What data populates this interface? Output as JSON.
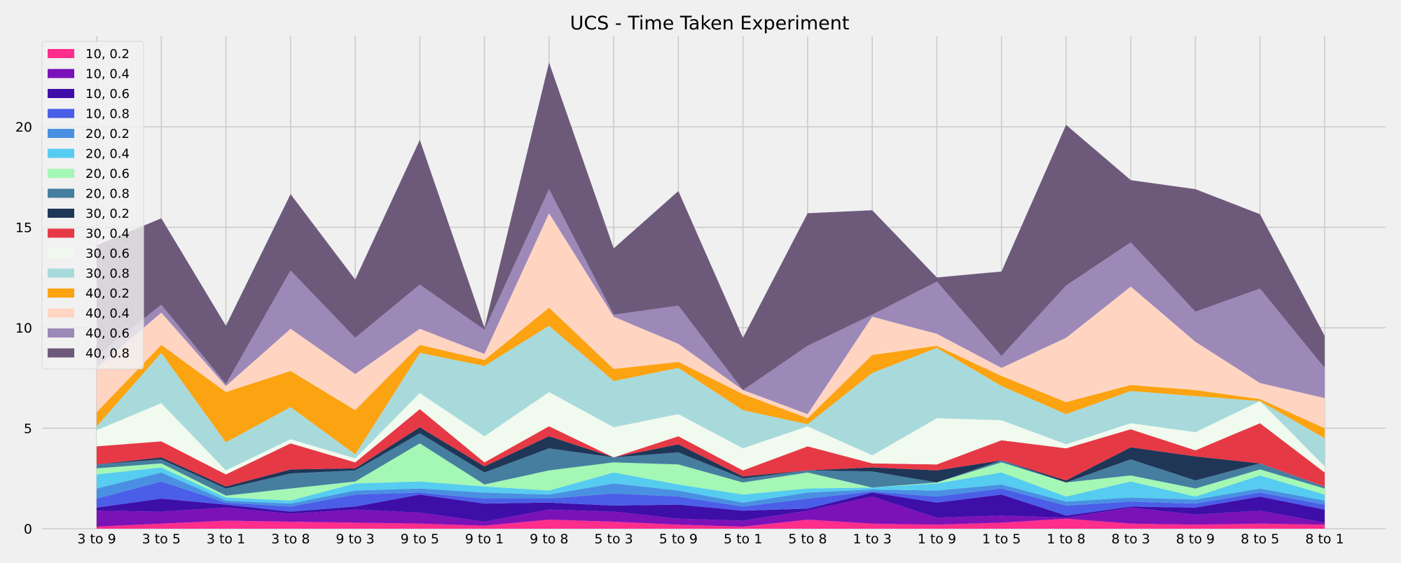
{
  "chart_data": {
    "type": "area",
    "stacked": true,
    "title": "UCS - Time Taken Experiment",
    "xlabel": "",
    "ylabel": "",
    "ylim": [
      0,
      24.5
    ],
    "yticks": [
      0,
      5,
      10,
      15,
      20
    ],
    "grid": true,
    "legend_position": "top-left",
    "categories": [
      "3 to 9",
      "3 to 5",
      "3 to 1",
      "3 to 8",
      "9 to 3",
      "9 to 5",
      "9 to 1",
      "9 to 8",
      "5 to 3",
      "5 to 9",
      "5 to 1",
      "5 to 8",
      "1 to 3",
      "1 to 9",
      "1 to 5",
      "1 to 8",
      "8 to 3",
      "8 to 9",
      "8 to 5",
      "8 to 1"
    ],
    "series": [
      {
        "name": "10, 0.2",
        "color": "#ff2d8c",
        "values": [
          0.1,
          0.25,
          0.4,
          0.35,
          0.3,
          0.25,
          0.15,
          0.45,
          0.35,
          0.2,
          0.1,
          0.45,
          0.25,
          0.2,
          0.3,
          0.5,
          0.25,
          0.2,
          0.25,
          0.2
        ]
      },
      {
        "name": "10, 0.4",
        "color": "#7a12b8",
        "values": [
          0.8,
          0.6,
          0.65,
          0.4,
          0.65,
          0.55,
          0.2,
          0.5,
          0.5,
          0.3,
          0.3,
          0.45,
          1.35,
          0.35,
          0.35,
          0.05,
          0.8,
          0.5,
          0.65,
          0.1
        ]
      },
      {
        "name": "10, 0.6",
        "color": "#3e0ea8",
        "values": [
          0.15,
          0.65,
          0.15,
          0.1,
          0.15,
          0.9,
          0.9,
          0.35,
          0.3,
          0.7,
          0.5,
          0.1,
          0.2,
          0.75,
          1.05,
          0.1,
          0.05,
          0.35,
          0.7,
          0.65
        ]
      },
      {
        "name": "10, 0.8",
        "color": "#4b5ee8",
        "values": [
          0.45,
          0.85,
          0.1,
          0.25,
          0.6,
          0.1,
          0.25,
          0.2,
          0.6,
          0.4,
          0.2,
          0.5,
          0.05,
          0.3,
          0.3,
          0.5,
          0.25,
          0.2,
          0.2,
          0.25
        ]
      },
      {
        "name": "20, 0.2",
        "color": "#4a90e2",
        "values": [
          0.5,
          0.45,
          0.1,
          0.15,
          0.2,
          0.2,
          0.3,
          0.2,
          0.5,
          0.3,
          0.2,
          0.3,
          0.1,
          0.3,
          0.2,
          0.2,
          0.2,
          0.2,
          0.2,
          0.2
        ]
      },
      {
        "name": "20, 0.4",
        "color": "#56ccf0",
        "values": [
          0.7,
          0.25,
          0.15,
          0.15,
          0.35,
          0.35,
          0.3,
          0.2,
          0.55,
          0.3,
          0.4,
          0.2,
          0.1,
          0.35,
          0.6,
          0.25,
          0.8,
          0.15,
          0.65,
          0.3
        ]
      },
      {
        "name": "20, 0.6",
        "color": "#a4f7b4",
        "values": [
          0.3,
          0.2,
          0.1,
          0.6,
          0.1,
          1.9,
          0.1,
          1.0,
          0.5,
          1.0,
          0.6,
          0.8,
          0.0,
          0.05,
          0.5,
          0.7,
          0.3,
          0.4,
          0.3,
          0.3
        ]
      },
      {
        "name": "20, 0.8",
        "color": "#467ea0",
        "values": [
          0.2,
          0.2,
          0.35,
          0.75,
          0.55,
          0.5,
          0.6,
          1.1,
          0.25,
          0.6,
          0.2,
          0.1,
          0.8,
          0.0,
          0.1,
          0.0,
          0.8,
          0.4,
          0.3,
          0.1
        ]
      },
      {
        "name": "30, 0.2",
        "color": "#1f3657",
        "values": [
          0.0,
          0.1,
          0.1,
          0.2,
          0.1,
          0.3,
          0.3,
          0.6,
          0.0,
          0.4,
          0.1,
          0.0,
          0.2,
          0.6,
          0.0,
          0.1,
          0.6,
          1.2,
          0.0,
          0.0
        ]
      },
      {
        "name": "30, 0.4",
        "color": "#e63946",
        "values": [
          0.9,
          0.8,
          0.6,
          1.3,
          0.3,
          0.9,
          0.2,
          0.5,
          0.0,
          0.4,
          0.3,
          1.2,
          0.2,
          0.3,
          1.0,
          1.6,
          0.9,
          0.3,
          2.0,
          0.7
        ]
      },
      {
        "name": "30, 0.6",
        "color": "#f1faee",
        "values": [
          0.8,
          1.9,
          0.2,
          0.2,
          0.2,
          0.8,
          1.3,
          1.7,
          1.5,
          1.1,
          1.1,
          1.0,
          0.4,
          2.3,
          1.0,
          0.2,
          0.3,
          0.9,
          1.1,
          0.3
        ]
      },
      {
        "name": "30, 0.8",
        "color": "#a8dadc",
        "values": [
          0.2,
          2.5,
          1.4,
          1.6,
          0.2,
          2.0,
          3.5,
          3.3,
          2.3,
          2.3,
          1.9,
          0.1,
          4.1,
          3.5,
          1.7,
          1.5,
          1.6,
          1.8,
          0.0,
          1.4
        ]
      },
      {
        "name": "40, 0.2",
        "color": "#fca311",
        "values": [
          0.7,
          0.4,
          2.5,
          1.8,
          2.2,
          0.4,
          0.3,
          0.9,
          0.6,
          0.3,
          0.8,
          0.3,
          0.9,
          0.1,
          0.5,
          0.6,
          0.3,
          0.3,
          0.1,
          0.5
        ]
      },
      {
        "name": "40, 0.4",
        "color": "#ffd5c2",
        "values": [
          2.2,
          1.6,
          0.3,
          2.1,
          1.8,
          0.8,
          0.3,
          4.7,
          2.6,
          0.9,
          0.2,
          0.2,
          1.9,
          0.6,
          0.4,
          3.2,
          4.9,
          2.4,
          0.8,
          1.5
        ]
      },
      {
        "name": "40, 0.6",
        "color": "#9d89b8",
        "values": [
          0.6,
          0.4,
          0.1,
          2.9,
          1.8,
          2.2,
          1.2,
          1.2,
          0.1,
          1.9,
          0.0,
          3.4,
          0.1,
          2.6,
          0.6,
          2.6,
          2.2,
          1.5,
          4.7,
          1.5
        ]
      },
      {
        "name": "40, 0.8",
        "color": "#6d5a7b",
        "values": [
          5.5,
          4.3,
          2.9,
          3.8,
          2.9,
          7.2,
          0.1,
          6.3,
          3.3,
          5.7,
          2.6,
          6.6,
          5.2,
          0.2,
          4.2,
          8.0,
          3.1,
          6.1,
          3.7,
          1.6
        ]
      }
    ]
  }
}
